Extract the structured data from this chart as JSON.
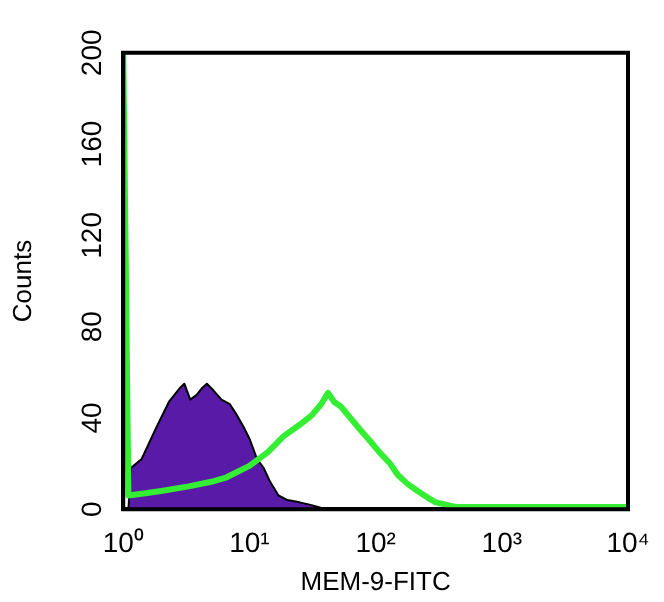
{
  "chart_data": {
    "type": "area",
    "xlabel": "MEM-9-FITC",
    "ylabel": "Counts",
    "log": "x",
    "xlim": [
      1,
      10000
    ],
    "ylim": [
      0,
      200
    ],
    "xticks": [
      {
        "value": 1,
        "label": "10⁰"
      },
      {
        "value": 10,
        "label": "10¹"
      },
      {
        "value": 100,
        "label": "10²"
      },
      {
        "value": 1000,
        "label": "10³"
      },
      {
        "value": 10000,
        "label": "10⁴"
      }
    ],
    "yticks": [
      0,
      40,
      80,
      120,
      160,
      200
    ],
    "grid": false,
    "legend": false,
    "series": [
      {
        "color": "#5a1aa8",
        "x": [
          1.1,
          1.15,
          1.4,
          1.8,
          2.3,
          2.8,
          3.05,
          3.4,
          3.8,
          4.2,
          4.6,
          5.2,
          6,
          7,
          7.8,
          9,
          10,
          11.5,
          13,
          14.6,
          17,
          20,
          25,
          30,
          35,
          40
        ],
        "values": [
          0,
          18,
          22,
          35,
          47,
          53,
          55,
          48,
          50,
          53,
          55,
          52,
          48,
          46,
          42,
          36,
          31,
          22,
          18,
          12,
          6,
          4,
          3,
          2,
          1,
          0
        ]
      },
      {
        "type": "line",
        "color": "#33ee33",
        "x": [
          1,
          1.05,
          1.1,
          1.5,
          2,
          3.3,
          5,
          6.6,
          10,
          14,
          18.7,
          25,
          31,
          37,
          42,
          47,
          53,
          63,
          75,
          90,
          107,
          130,
          150,
          180,
          215,
          260,
          300,
          430,
          1000,
          3000,
          10000
        ],
        "values": [
          200,
          105,
          6,
          7,
          8,
          10,
          12,
          14,
          19,
          25,
          32,
          37,
          41,
          46,
          51,
          47,
          45,
          40,
          35,
          30,
          25,
          20,
          15,
          11,
          8,
          5,
          3,
          1,
          1,
          1,
          1
        ]
      }
    ]
  }
}
